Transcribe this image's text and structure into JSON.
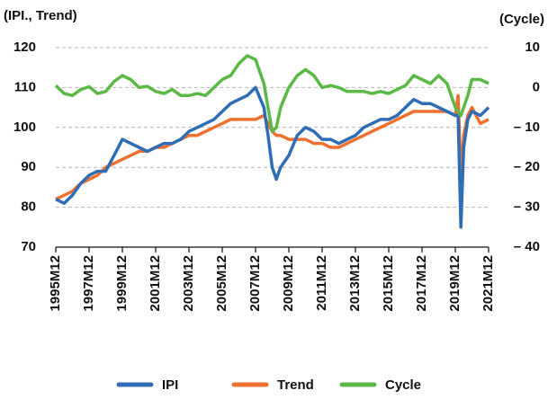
{
  "chart_data": {
    "type": "line",
    "y_label": "(IPI., Trend)",
    "y2_label": "(Cycle)",
    "x": [
      "1995M12",
      "1996M06",
      "1996M12",
      "1997M06",
      "1997M12",
      "1998M06",
      "1998M12",
      "1999M06",
      "1999M12",
      "2000M06",
      "2000M12",
      "2001M06",
      "2001M12",
      "2002M06",
      "2002M12",
      "2003M06",
      "2003M12",
      "2004M06",
      "2004M12",
      "2005M06",
      "2005M12",
      "2006M06",
      "2006M12",
      "2007M06",
      "2007M12",
      "2008M06",
      "2008M09",
      "2008M12",
      "2009M03",
      "2009M06",
      "2009M12",
      "2010M06",
      "2010M12",
      "2011M06",
      "2011M12",
      "2012M06",
      "2012M12",
      "2013M06",
      "2013M12",
      "2014M06",
      "2014M12",
      "2015M06",
      "2015M12",
      "2016M06",
      "2016M12",
      "2017M06",
      "2017M12",
      "2018M06",
      "2018M12",
      "2019M06",
      "2019M12",
      "2020M02",
      "2020M04",
      "2020M06",
      "2020M09",
      "2020M12",
      "2021M06",
      "2021M12"
    ],
    "xlim": [
      "1995M12",
      "2021M12"
    ],
    "xticks": [
      "1995M12",
      "1997M12",
      "1999M12",
      "2001M12",
      "2003M12",
      "2005M12",
      "2007M12",
      "2009M12",
      "2011M12",
      "2013M12",
      "2015M12",
      "2017M12",
      "2019M12",
      "2021M12"
    ],
    "ylim": [
      70,
      120
    ],
    "yticks": [
      70,
      80,
      90,
      100,
      110,
      120
    ],
    "y2lim": [
      -40,
      10
    ],
    "y2ticks": [
      {
        "value": -40,
        "label": "– 40"
      },
      {
        "value": -30,
        "label": "– 30"
      },
      {
        "value": -20,
        "label": "– 20"
      },
      {
        "value": -10,
        "label": "– 10"
      },
      0,
      10
    ],
    "grid": true,
    "legend": "bottom",
    "series": [
      {
        "name": "IPI",
        "color": "#2f6db5",
        "values": [
          82,
          81,
          83,
          86,
          88,
          89,
          89,
          93,
          97,
          96,
          95,
          94,
          95,
          96,
          96,
          97,
          99,
          100,
          101,
          102,
          104,
          106,
          107,
          108,
          110,
          105,
          98,
          90,
          87,
          90,
          93,
          98,
          100,
          99,
          97,
          97,
          96,
          97,
          98,
          100,
          101,
          102,
          102,
          103,
          105,
          107,
          106,
          106,
          105,
          104,
          103,
          103,
          75,
          95,
          102,
          104,
          103,
          105
        ]
      },
      {
        "name": "Trend",
        "color": "#f07030",
        "values": [
          82,
          83,
          84,
          86,
          87,
          88,
          90,
          91,
          92,
          93,
          94,
          94,
          95,
          95,
          96,
          97,
          98,
          98,
          99,
          100,
          101,
          102,
          102,
          102,
          102,
          103,
          101,
          99,
          98,
          98,
          97,
          97,
          97,
          96,
          96,
          95,
          95,
          96,
          97,
          98,
          99,
          100,
          101,
          102,
          103,
          104,
          104,
          104,
          104,
          104,
          103,
          108,
          88,
          98,
          103,
          105,
          101,
          102
        ]
      },
      {
        "name": "Cycle",
        "color": "#5bb946",
        "axis": "y2",
        "values": [
          0.5,
          -1.5,
          -2,
          -0.5,
          0.2,
          -1.5,
          -1,
          1.5,
          3,
          2,
          0,
          0.3,
          -1,
          -1.5,
          -0.5,
          -2,
          -2,
          -1.5,
          -2,
          0,
          2,
          3,
          6,
          8,
          7,
          1,
          -5,
          -11,
          -10,
          -5,
          0,
          3,
          4.5,
          3,
          0,
          0.5,
          0,
          -1,
          -1,
          -1,
          -1.5,
          -1,
          -1.5,
          -0.5,
          0.5,
          3,
          2,
          1,
          3,
          1,
          -5,
          -6,
          -7,
          -5,
          -2,
          2,
          2,
          1
        ]
      }
    ]
  }
}
